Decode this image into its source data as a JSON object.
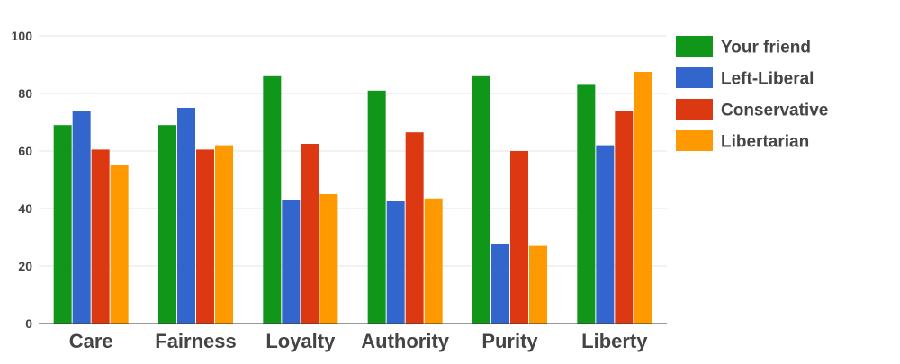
{
  "chart_data": {
    "type": "bar",
    "title": "",
    "xlabel": "",
    "ylabel": "",
    "ylim": [
      0,
      100
    ],
    "yticks": [
      0,
      20,
      40,
      60,
      80,
      100
    ],
    "grid": true,
    "legend_position": "right",
    "categories": [
      "Care",
      "Fairness",
      "Loyalty",
      "Authority",
      "Purity",
      "Liberty"
    ],
    "series": [
      {
        "name": "Your friend",
        "color": "#109618",
        "values": [
          69,
          69,
          86,
          81,
          86,
          83
        ]
      },
      {
        "name": "Left-Liberal",
        "color": "#3366cc",
        "values": [
          74,
          75,
          43,
          42.5,
          27.5,
          62
        ]
      },
      {
        "name": "Conservative",
        "color": "#dc3912",
        "values": [
          60.5,
          60.5,
          62.5,
          66.5,
          60,
          74
        ]
      },
      {
        "name": "Libertarian",
        "color": "#ff9900",
        "values": [
          55,
          62,
          45,
          43.5,
          27,
          87.5
        ]
      }
    ]
  }
}
